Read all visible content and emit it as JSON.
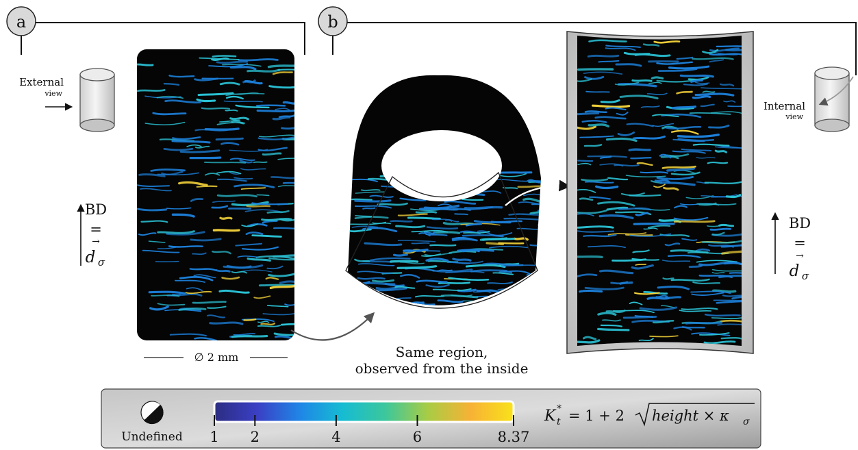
{
  "panels": {
    "a": {
      "letter": "a",
      "view_label": "External",
      "view_sub": "view",
      "bd_label": "BD",
      "eq": "=",
      "d_symbol": "d",
      "d_sub": "σ",
      "arrow_vec": "→",
      "diameter": "∅ 2 mm"
    },
    "b": {
      "letter": "b",
      "view_label": "Internal",
      "view_sub": "view",
      "bd_label": "BD",
      "eq": "=",
      "d_symbol": "d",
      "d_sub": "σ",
      "arrow_vec": "→",
      "caption_line1": "Same region,",
      "caption_line2": "observed from the inside"
    }
  },
  "colorbar": {
    "undefined_label": "Undefined",
    "ticks": [
      {
        "value": 1,
        "label": "1"
      },
      {
        "value": 2,
        "label": "2"
      },
      {
        "value": 4,
        "label": "4"
      },
      {
        "value": 6,
        "label": "6"
      },
      {
        "value": 8.37,
        "label": "8.37"
      }
    ],
    "min": 1,
    "max": 8.37,
    "colors": [
      "#2c2d82",
      "#3a3fc4",
      "#1f86e6",
      "#16bcd2",
      "#3cc79c",
      "#a9cc45",
      "#f7b235",
      "#f9e21a"
    ],
    "formula": {
      "lhs": "K",
      "lhs_sub": "t",
      "lhs_sup": "*",
      "rhs_prefix": "= 1 + 2",
      "radicand": "height × κ",
      "radicand_sub": "σ"
    }
  },
  "palette": {
    "scan_black": "#050505",
    "ridge_blue": "#1c7fd9",
    "ridge_cyan": "#2bc3d6",
    "ridge_yellow": "#f3d23a",
    "panel_gray": "#cfcfcf"
  }
}
